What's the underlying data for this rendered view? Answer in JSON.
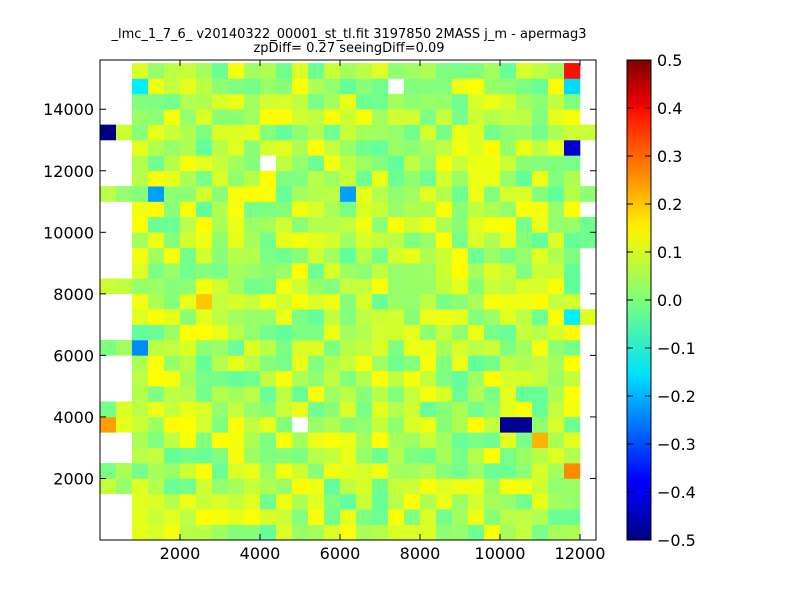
{
  "chart_data": {
    "type": "heatmap",
    "title": "_lmc_1_7_6_ v20140322_00001_st_tl.fit 3197850 2MASS j_m - apermag3",
    "subtitle": "zpDiff= 0.27 seeingDiff=0.09",
    "xlabel": "",
    "ylabel": "",
    "xlim": [
      0,
      12400
    ],
    "ylim": [
      0,
      15600
    ],
    "xticks": [
      "2000",
      "4000",
      "6000",
      "8000",
      "10000",
      "12000"
    ],
    "yticks": [
      "2000",
      "4000",
      "6000",
      "8000",
      "10000",
      "12000",
      "14000"
    ],
    "colorbar": {
      "colormap": "jet",
      "vmin": -0.5,
      "vmax": 0.5,
      "ticks": [
        "0.5",
        "0.4",
        "0.3",
        "0.2",
        "0.1",
        "0.0",
        "−0.1",
        "−0.2",
        "−0.3",
        "−0.4",
        "−0.5"
      ]
    },
    "cells": {
      "x0": 0,
      "dx": 400,
      "y0": 0,
      "dy": 500,
      "ncols": 31,
      "nrows": 31,
      "background": 0.05,
      "notable_values": [
        {
          "x": 200,
          "y": 13250,
          "v": -0.5
        },
        {
          "x": 10250,
          "y": 3750,
          "v": -0.48
        },
        {
          "x": 10650,
          "y": 3750,
          "v": -0.48
        },
        {
          "x": 11850,
          "y": 12750,
          "v": -0.42
        },
        {
          "x": 1350,
          "y": 11250,
          "v": -0.22
        },
        {
          "x": 6150,
          "y": 11250,
          "v": -0.22
        },
        {
          "x": 950,
          "y": 6250,
          "v": -0.24
        },
        {
          "x": 11850,
          "y": 14750,
          "v": -0.16
        },
        {
          "x": 950,
          "y": 14750,
          "v": -0.14
        },
        {
          "x": 11850,
          "y": 7250,
          "v": -0.14
        },
        {
          "x": 200,
          "y": 3750,
          "v": 0.22
        },
        {
          "x": 11850,
          "y": 2250,
          "v": 0.24
        },
        {
          "x": 11850,
          "y": 15450,
          "v": 0.36
        },
        {
          "x": 2550,
          "y": 7750,
          "v": 0.18
        },
        {
          "x": 10950,
          "y": 3250,
          "v": 0.2
        }
      ],
      "empty": [
        [
          7550,
          14750
        ],
        [
          4150,
          12250
        ],
        [
          5150,
          3750
        ]
      ]
    }
  }
}
